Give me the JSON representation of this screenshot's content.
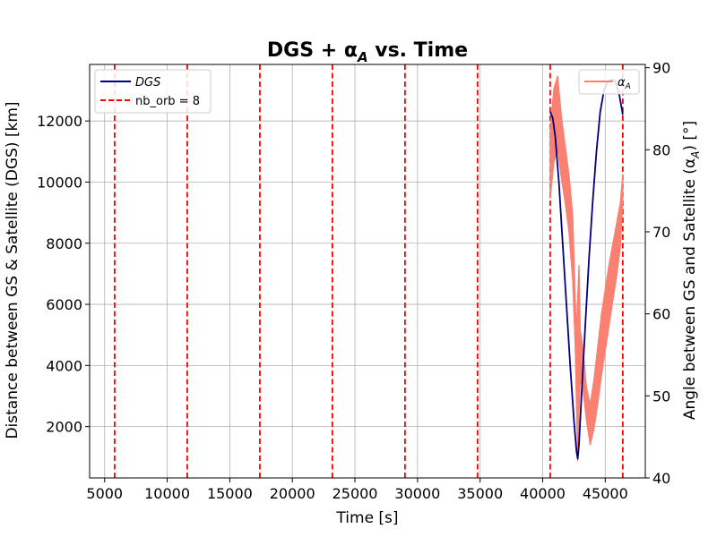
{
  "chart_data": {
    "type": "line",
    "title": "DGS + αA vs. Time",
    "title_parts": {
      "prefix": "DGS + α",
      "subscript": "A",
      "suffix": " vs. Time"
    },
    "xlabel": "Time [s]",
    "ylabel_left": "Distance between GS & Satellite (DGS) [km]",
    "ylabel_right_parts": {
      "prefix": "Angle between GS and Satellite (α",
      "subscript": "A",
      "suffix": ") [°]"
    },
    "xlim": [
      3800,
      48200
    ],
    "ylim_left": [
      320,
      13850
    ],
    "ylim_right": [
      40,
      90.4
    ],
    "x_ticks": [
      5000,
      10000,
      15000,
      20000,
      25000,
      30000,
      35000,
      40000,
      45000
    ],
    "y_left_ticks": [
      2000,
      4000,
      6000,
      8000,
      10000,
      12000
    ],
    "y_right_ticks": [
      40,
      50,
      60,
      70,
      80,
      90
    ],
    "grid": true,
    "legend_left": {
      "placement": "top-left",
      "entries": [
        {
          "label": "DGS",
          "style": "solid",
          "color": "#00007f",
          "italic": true
        },
        {
          "label": "nb_orb = 8",
          "style": "dashed",
          "color": "#ff0000",
          "italic": false
        }
      ]
    },
    "legend_right": {
      "placement": "top-right",
      "entries": [
        {
          "label_prefix": "α",
          "label_subscript": "A",
          "style": "solid",
          "color": "#fa8072"
        }
      ]
    },
    "vlines": {
      "name": "nb_orb = 8",
      "color": "#ff0000",
      "x": [
        5800,
        11600,
        17400,
        23200,
        29000,
        34800,
        40600,
        46400
      ]
    },
    "series": [
      {
        "name": "DGS",
        "axis": "left",
        "color": "#00007f",
        "x": [
          40600,
          40800,
          41000,
          41300,
          41600,
          41900,
          42200,
          42500,
          42700,
          42800,
          42900,
          43100,
          43400,
          43700,
          44000,
          44300,
          44600,
          44900,
          45200,
          45500,
          45800,
          46100,
          46400
        ],
        "y": [
          12300,
          12100,
          11500,
          10000,
          8000,
          6000,
          4000,
          2200,
          1200,
          950,
          1400,
          3000,
          5300,
          7500,
          9400,
          11000,
          12300,
          13000,
          13300,
          13350,
          13300,
          12900,
          12200
        ]
      },
      {
        "name": "αA",
        "axis": "right",
        "color": "#fa8072",
        "style": "oscillating-band",
        "x": [
          40600,
          40900,
          41200,
          41500,
          41800,
          42100,
          42400,
          42600,
          42700,
          42800,
          42900,
          43000,
          43200,
          43500,
          43800,
          44100,
          44400,
          44700,
          45000,
          45300,
          45600,
          45900,
          46200,
          46400
        ],
        "upper": [
          82.5,
          87.5,
          89.0,
          84.0,
          80.5,
          77.0,
          72.0,
          62.0,
          58.0,
          62.0,
          66.0,
          58.0,
          56.0,
          51.0,
          49.0,
          52.0,
          56.0,
          60.0,
          63.0,
          66.0,
          68.5,
          71.0,
          73.5,
          77.0
        ],
        "lower": [
          74.0,
          78.5,
          80.0,
          76.5,
          73.5,
          70.0,
          64.0,
          56.0,
          49.0,
          42.0,
          48.0,
          52.0,
          51.0,
          47.0,
          44.0,
          46.0,
          49.0,
          52.5,
          55.5,
          58.5,
          61.5,
          64.5,
          68.0,
          74.0
        ]
      }
    ]
  }
}
